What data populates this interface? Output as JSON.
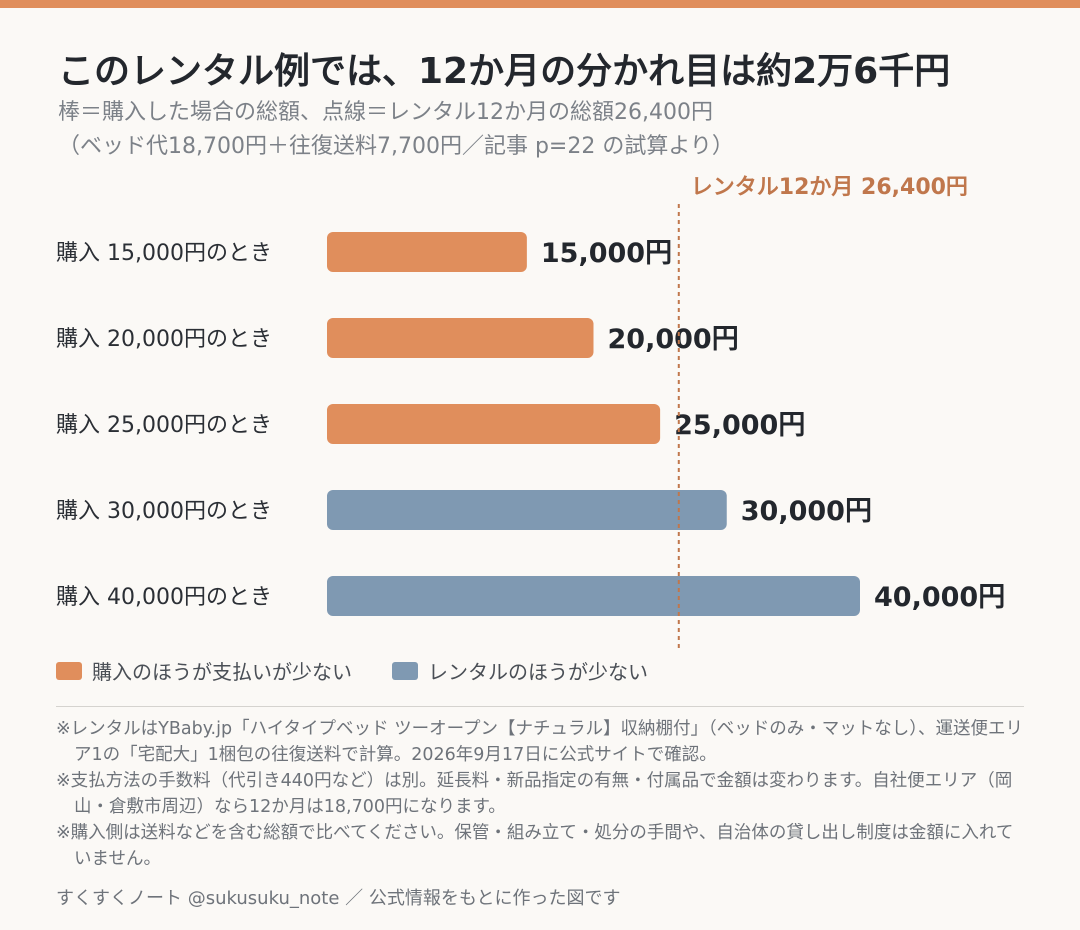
{
  "title": "このレンタル例では、12か月の分かれ目は約2万6千円",
  "subtitle_line1": "棒＝購入した場合の総額、点線＝レンタル12か月の総額26,400円",
  "subtitle_line2": "（ベッド代18,700円＋往復送料7,700円／記事 p=22 の試算より）",
  "colors": {
    "accent": "#e08e5c",
    "rental_cheaper": "#7f99b2",
    "reference_line": "#c0774c"
  },
  "chart_data": {
    "type": "bar",
    "orientation": "horizontal",
    "categories": [
      "購入 15,000円のとき",
      "購入 20,000円のとき",
      "購入 25,000円のとき",
      "購入 30,000円のとき",
      "購入 40,000円のとき"
    ],
    "values": [
      15000,
      20000,
      25000,
      30000,
      40000
    ],
    "value_labels": [
      "15,000円",
      "20,000円",
      "25,000円",
      "30,000円",
      "40,000円"
    ],
    "groups": [
      "buy_cheaper",
      "buy_cheaper",
      "buy_cheaper",
      "rental_cheaper",
      "rental_cheaper"
    ],
    "reference_line": {
      "value": 26400,
      "label": "レンタル12か月 26,400円"
    },
    "xlim": [
      0,
      40000
    ],
    "grid": false,
    "legend": {
      "placement": "bottom-left",
      "items": [
        {
          "key": "buy_cheaper",
          "label": "購入のほうが支払いが少ない",
          "color": "#e08e5c"
        },
        {
          "key": "rental_cheaper",
          "label": "レンタルのほうが少ない",
          "color": "#7f99b2"
        }
      ]
    }
  },
  "notes": [
    "※レンタルはYBaby.jp「ハイタイプベッド ツーオープン【ナチュラル】収納棚付」（ベッドのみ・マットなし）、運送便エリア1の「宅配大」1梱包の往復送料で計算。2026年9月17日に公式サイトで確認。",
    "※支払方法の手数料（代引き440円など）は別。延長料・新品指定の有無・付属品で金額は変わります。自社便エリア（岡山・倉敷市周辺）なら12か月は18,700円になります。",
    "※購入側は送料などを含む総額で比べてください。保管・組み立て・処分の手間や、自治体の貸し出し制度は金額に入れていません。"
  ],
  "credit": "すくすくノート @sukusuku_note ／ 公式情報をもとに作った図です"
}
